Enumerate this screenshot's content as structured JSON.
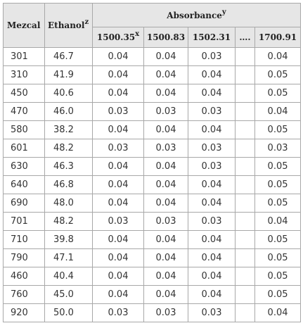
{
  "table": {
    "headers": {
      "mezcal": "Mezcal",
      "ethanol": "Ethanol",
      "ethanol_sup": "z",
      "absorbance": "Absorbance",
      "absorbance_sup": "y",
      "wavenumbers": [
        {
          "label": "1500.35",
          "sup": "x"
        },
        {
          "label": "1500.83",
          "sup": ""
        },
        {
          "label": "1502.31",
          "sup": ""
        },
        {
          "label": "….",
          "sup": ""
        },
        {
          "label": "1700.91",
          "sup": ""
        }
      ]
    },
    "rows": [
      {
        "mezcal": "301",
        "ethanol": "46.7",
        "a1": "0.04",
        "a2": "0.04",
        "a3": "0.03",
        "a4": "0.04"
      },
      {
        "mezcal": "310",
        "ethanol": "41.9",
        "a1": "0.04",
        "a2": "0.04",
        "a3": "0.04",
        "a4": "0.05"
      },
      {
        "mezcal": "450",
        "ethanol": "40.6",
        "a1": "0.04",
        "a2": "0.04",
        "a3": "0.04",
        "a4": "0.05"
      },
      {
        "mezcal": "470",
        "ethanol": "46.0",
        "a1": "0.03",
        "a2": "0.03",
        "a3": "0.03",
        "a4": "0.04"
      },
      {
        "mezcal": "580",
        "ethanol": "38.2",
        "a1": "0.04",
        "a2": "0.04",
        "a3": "0.04",
        "a4": "0.05"
      },
      {
        "mezcal": "601",
        "ethanol": "48.2",
        "a1": "0.03",
        "a2": "0.03",
        "a3": "0.03",
        "a4": "0.03"
      },
      {
        "mezcal": "630",
        "ethanol": "46.3",
        "a1": "0.04",
        "a2": "0.04",
        "a3": "0.03",
        "a4": "0.05"
      },
      {
        "mezcal": "640",
        "ethanol": "46.8",
        "a1": "0.04",
        "a2": "0.04",
        "a3": "0.04",
        "a4": "0.05"
      },
      {
        "mezcal": "690",
        "ethanol": "48.0",
        "a1": "0.04",
        "a2": "0.04",
        "a3": "0.04",
        "a4": "0.05"
      },
      {
        "mezcal": "701",
        "ethanol": "48.2",
        "a1": "0.03",
        "a2": "0.03",
        "a3": "0.03",
        "a4": "0.04"
      },
      {
        "mezcal": "710",
        "ethanol": "39.8",
        "a1": "0.04",
        "a2": "0.04",
        "a3": "0.04",
        "a4": "0.05"
      },
      {
        "mezcal": "790",
        "ethanol": "47.1",
        "a1": "0.04",
        "a2": "0.04",
        "a3": "0.04",
        "a4": "0.05"
      },
      {
        "mezcal": "460",
        "ethanol": "40.4",
        "a1": "0.04",
        "a2": "0.04",
        "a3": "0.04",
        "a4": "0.05"
      },
      {
        "mezcal": "760",
        "ethanol": "45.0",
        "a1": "0.04",
        "a2": "0.04",
        "a3": "0.04",
        "a4": "0.05"
      },
      {
        "mezcal": "920",
        "ethanol": "50.0",
        "a1": "0.03",
        "a2": "0.03",
        "a3": "0.03",
        "a4": "0.04"
      }
    ]
  }
}
